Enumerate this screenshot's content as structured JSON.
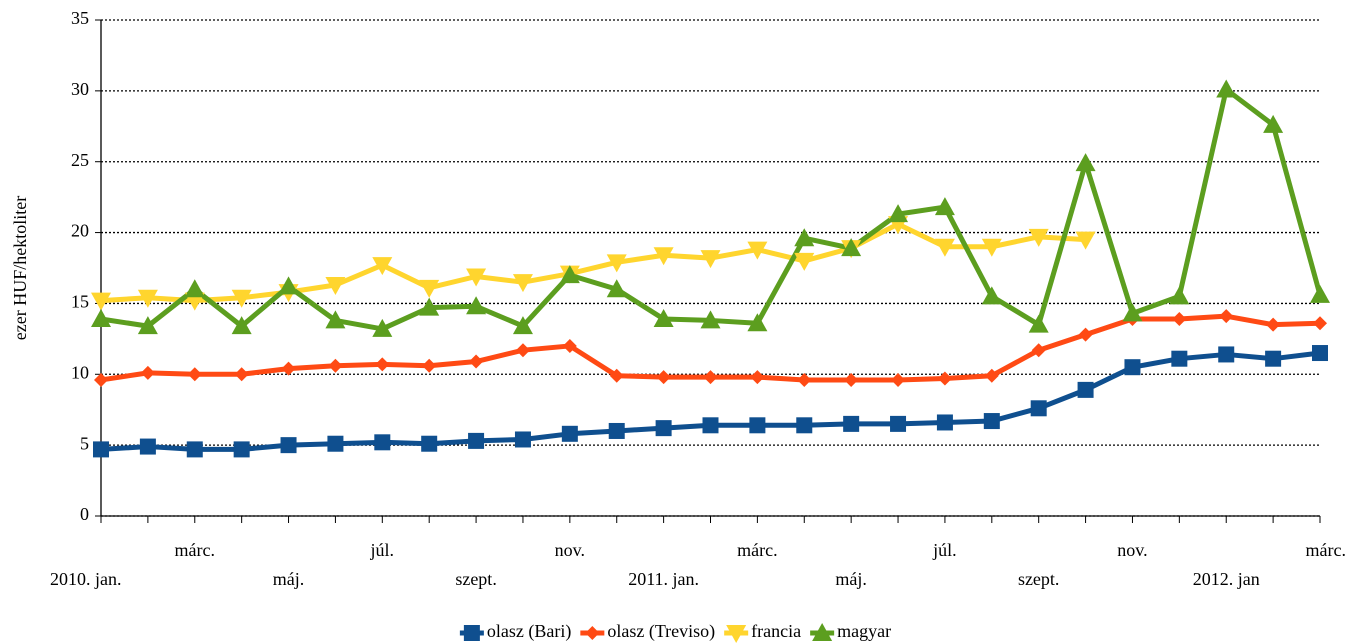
{
  "chart_data": {
    "type": "line",
    "y_label": "ezer HUF/hektoliter",
    "categories": [
      "2010. jan.",
      null,
      "márc.",
      null,
      "máj.",
      null,
      "júl.",
      null,
      "szept.",
      null,
      "nov.",
      null,
      "2011. jan.",
      null,
      "márc.",
      null,
      "máj.",
      null,
      "júl.",
      null,
      "szept.",
      null,
      "nov.",
      null,
      "2012. jan",
      null,
      "márc."
    ],
    "series": [
      {
        "name": "olasz (Bari)",
        "color": "#0f4f8f",
        "marker": "square",
        "values": [
          4.7,
          4.9,
          4.7,
          4.7,
          5.0,
          5.1,
          5.2,
          5.1,
          5.3,
          5.4,
          5.8,
          6.0,
          6.2,
          6.4,
          6.4,
          6.4,
          6.5,
          6.5,
          6.6,
          6.7,
          7.6,
          8.9,
          10.5,
          11.1,
          11.4,
          11.1,
          11.5
        ]
      },
      {
        "name": "olasz (Treviso)",
        "color": "#ff4a14",
        "marker": "diamond",
        "values": [
          9.6,
          10.1,
          10.0,
          10.0,
          10.4,
          10.6,
          10.7,
          10.6,
          10.9,
          11.7,
          12.0,
          9.9,
          9.8,
          9.8,
          9.8,
          9.6,
          9.6,
          9.6,
          9.7,
          9.9,
          11.7,
          12.8,
          13.9,
          13.9,
          14.1,
          13.5,
          13.6
        ]
      },
      {
        "name": "francia",
        "color": "#ffd52e",
        "marker": "triangle-down",
        "values": [
          15.2,
          15.4,
          15.2,
          15.4,
          15.8,
          16.3,
          17.7,
          16.1,
          16.9,
          16.5,
          17.1,
          17.9,
          18.4,
          18.2,
          18.8,
          18.0,
          18.9,
          20.6,
          19.0,
          19.0,
          19.7,
          19.5,
          null,
          null,
          null,
          null,
          null
        ]
      },
      {
        "name": "magyar",
        "color": "#5c9e1f",
        "marker": "triangle-up",
        "values": [
          13.9,
          13.4,
          16.0,
          13.4,
          16.2,
          13.8,
          13.2,
          14.7,
          14.8,
          13.4,
          17.0,
          16.0,
          13.9,
          13.8,
          13.6,
          19.6,
          18.9,
          21.3,
          21.8,
          15.5,
          13.5,
          24.9,
          14.3,
          15.5,
          30.1,
          27.6,
          15.6
        ]
      }
    ],
    "ylim": [
      0,
      35
    ],
    "yticks": [
      0,
      5,
      10,
      15,
      20,
      25,
      30,
      35
    ],
    "grid": true,
    "legend": "bottom"
  }
}
